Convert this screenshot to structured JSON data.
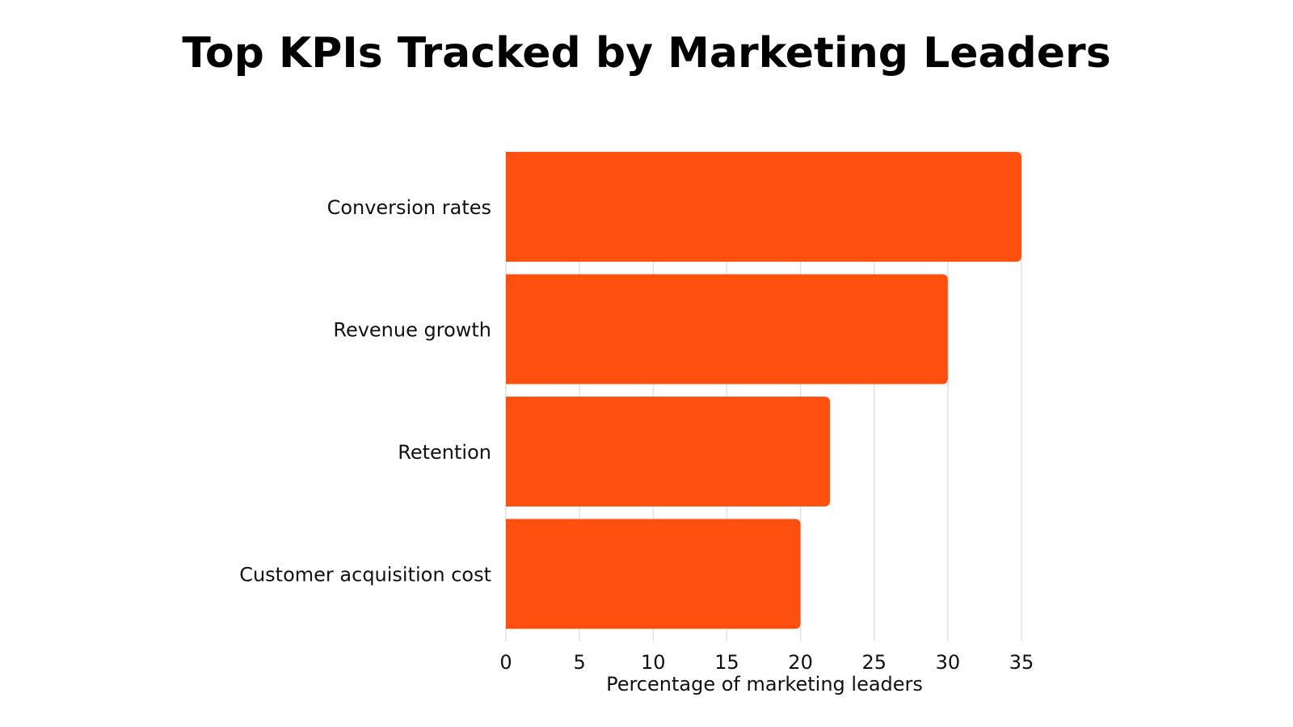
{
  "chart_data": {
    "type": "bar",
    "orientation": "horizontal",
    "title": "Top KPIs Tracked by Marketing Leaders",
    "xlabel": "Percentage of marketing leaders",
    "ylabel": "",
    "categories": [
      "Conversion rates",
      "Revenue growth",
      "Retention",
      "Customer acquisition cost"
    ],
    "values": [
      35,
      30,
      22,
      20
    ],
    "xlim": [
      0,
      35
    ],
    "xticks": [
      "0",
      "5",
      "10",
      "15",
      "20",
      "25",
      "30",
      "35"
    ],
    "grid": true,
    "legend": "none",
    "bar_color": "#FF5010",
    "grid_color": "#E2E2E2"
  }
}
